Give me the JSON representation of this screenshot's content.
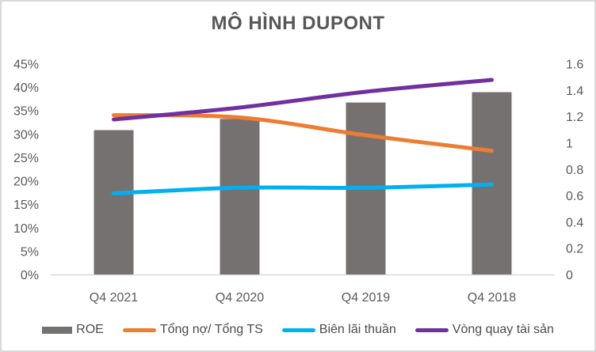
{
  "title": "MÔ HÌNH DUPONT",
  "colors": {
    "bar_gray": "#767171",
    "orange": "#ED7D31",
    "blue": "#00B0F0",
    "purple": "#7030A0",
    "axis_text": "#595959",
    "title_text": "#575757",
    "axis_line": "#D9D9D9",
    "frame_border": "#D9D9D9"
  },
  "chart_data": {
    "type": "bar",
    "subtype": "combo-bar-line-dual-axis",
    "title": "MÔ HÌNH DUPONT",
    "categories": [
      "Q4 2021",
      "Q4 2020",
      "Q4 2019",
      "Q4 2018"
    ],
    "series": [
      {
        "name": "ROE",
        "kind": "bar",
        "axis": "left",
        "unit": "%",
        "color": "#767171",
        "values": [
          30.9,
          33.3,
          36.8,
          39.0
        ]
      },
      {
        "name": "Tổng nợ/ Tổng TS",
        "kind": "line",
        "axis": "left",
        "unit": "%",
        "color": "#ED7D31",
        "values": [
          34.1,
          33.6,
          29.8,
          26.5
        ]
      },
      {
        "name": "Biên lãi thuần",
        "kind": "line",
        "axis": "left",
        "unit": "%",
        "color": "#00B0F0",
        "values": [
          17.4,
          18.6,
          18.6,
          19.3
        ]
      },
      {
        "name": "Vòng quay tài sản",
        "kind": "line",
        "axis": "right",
        "unit": "x",
        "color": "#7030A0",
        "values": [
          1.18,
          1.27,
          1.39,
          1.48
        ]
      }
    ],
    "left_axis": {
      "min": 0,
      "max": 45,
      "step": 5,
      "tick_labels": [
        "0%",
        "5%",
        "10%",
        "15%",
        "20%",
        "25%",
        "30%",
        "35%",
        "40%",
        "45%"
      ]
    },
    "right_axis": {
      "min": 0,
      "max": 1.6,
      "step": 0.2,
      "tick_labels": [
        "0",
        "0.2",
        "0.4",
        "0.6",
        "0.8",
        "1",
        "1.2",
        "1.4",
        "1.6"
      ]
    },
    "grid": false,
    "legend_position": "bottom"
  }
}
